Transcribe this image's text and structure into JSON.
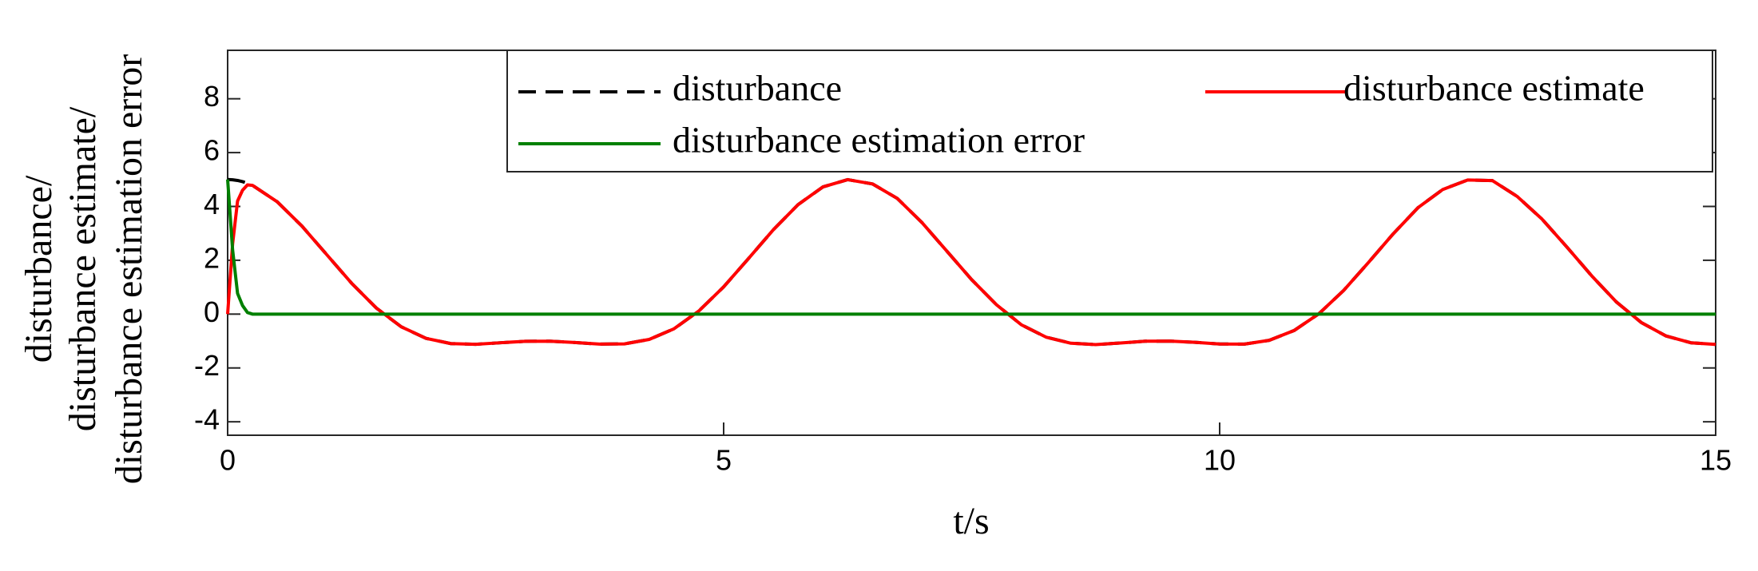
{
  "chart_data": {
    "type": "line",
    "xlabel": "t/s",
    "ylabel": [
      "disturbance/",
      "disturbance estimate/",
      "disturbance estimation error"
    ],
    "x": [
      0,
      0.05,
      0.1,
      0.15,
      0.2,
      0.25,
      0.5,
      0.75,
      1,
      1.25,
      1.5,
      1.75,
      2,
      2.25,
      2.5,
      2.75,
      3,
      3.25,
      3.5,
      3.75,
      4,
      4.25,
      4.5,
      4.75,
      5,
      5.25,
      5.5,
      5.75,
      6,
      6.25,
      6.5,
      6.75,
      7,
      7.25,
      7.5,
      7.75,
      8,
      8.25,
      8.5,
      8.75,
      9,
      9.25,
      9.5,
      9.75,
      10,
      10.25,
      10.5,
      10.75,
      11,
      11.25,
      11.5,
      11.75,
      12,
      12.25,
      12.5,
      12.75,
      13,
      13.25,
      13.5,
      13.75,
      14,
      14.25,
      14.5,
      14.75,
      15
    ],
    "series": [
      {
        "name": "disturbance",
        "color": "#000000",
        "dash": true,
        "values": [
          5,
          4.991,
          4.965,
          4.922,
          4.861,
          4.784,
          4.173,
          3.266,
          2.205,
          1.145,
          0.222,
          -0.471,
          -0.902,
          -1.095,
          -1.12,
          -1.064,
          -1.01,
          -1.006,
          -1.056,
          -1.115,
          -1.106,
          -0.94,
          -0.544,
          0.116,
          1.012,
          2.061,
          3.13,
          4.067,
          4.724,
          4.996,
          4.837,
          4.299,
          3.398,
          2.339,
          1.28,
          0.348,
          -0.394,
          -0.855,
          -1.081,
          -1.132,
          -1.073,
          -1.008,
          -1.003,
          -1.048,
          -1.109,
          -1.114,
          -0.974,
          -0.611,
          0.013,
          0.88,
          1.917,
          2.985,
          3.956,
          4.632,
          4.983,
          4.959,
          4.369,
          3.528,
          2.493,
          1.424,
          0.448,
          -0.312,
          -0.813,
          -1.065,
          -1.125
        ]
      },
      {
        "name": "disturbance estimate",
        "color": "#ff0000",
        "dash": false,
        "values": [
          0,
          2.6,
          4.2,
          4.6,
          4.8,
          4.784,
          4.173,
          3.266,
          2.205,
          1.145,
          0.222,
          -0.471,
          -0.902,
          -1.095,
          -1.12,
          -1.064,
          -1.01,
          -1.006,
          -1.056,
          -1.115,
          -1.106,
          -0.94,
          -0.544,
          0.116,
          1.012,
          2.061,
          3.13,
          4.067,
          4.724,
          4.996,
          4.837,
          4.299,
          3.398,
          2.339,
          1.28,
          0.348,
          -0.394,
          -0.855,
          -1.081,
          -1.132,
          -1.073,
          -1.008,
          -1.003,
          -1.048,
          -1.109,
          -1.114,
          -0.974,
          -0.611,
          0.013,
          0.88,
          1.917,
          2.985,
          3.956,
          4.632,
          4.983,
          4.959,
          4.369,
          3.528,
          2.493,
          1.424,
          0.448,
          -0.312,
          -0.813,
          -1.065,
          -1.125
        ]
      },
      {
        "name": "disturbance estimation error",
        "color": "#008000",
        "dash": false,
        "values": [
          5,
          2.39,
          0.77,
          0.32,
          0.06,
          0,
          0,
          0,
          0,
          0,
          0,
          0,
          0,
          0,
          0,
          0,
          0,
          0,
          0,
          0,
          0,
          0,
          0,
          0,
          0,
          0,
          0,
          0,
          0,
          0,
          0,
          0,
          0,
          0,
          0,
          0,
          0,
          0,
          0,
          0,
          0,
          0,
          0,
          0,
          0,
          0,
          0,
          0,
          0,
          0,
          0,
          0,
          0,
          0,
          0,
          0,
          0,
          0,
          0,
          0,
          0,
          0,
          0,
          0,
          0
        ]
      }
    ],
    "xlim": [
      0,
      15
    ],
    "xticks": [
      0,
      5,
      10,
      15
    ],
    "ylim": [
      -4.5,
      9.8
    ],
    "yticks": [
      -4,
      -2,
      0,
      2,
      4,
      6,
      8
    ],
    "grid": false,
    "legend": "top"
  }
}
